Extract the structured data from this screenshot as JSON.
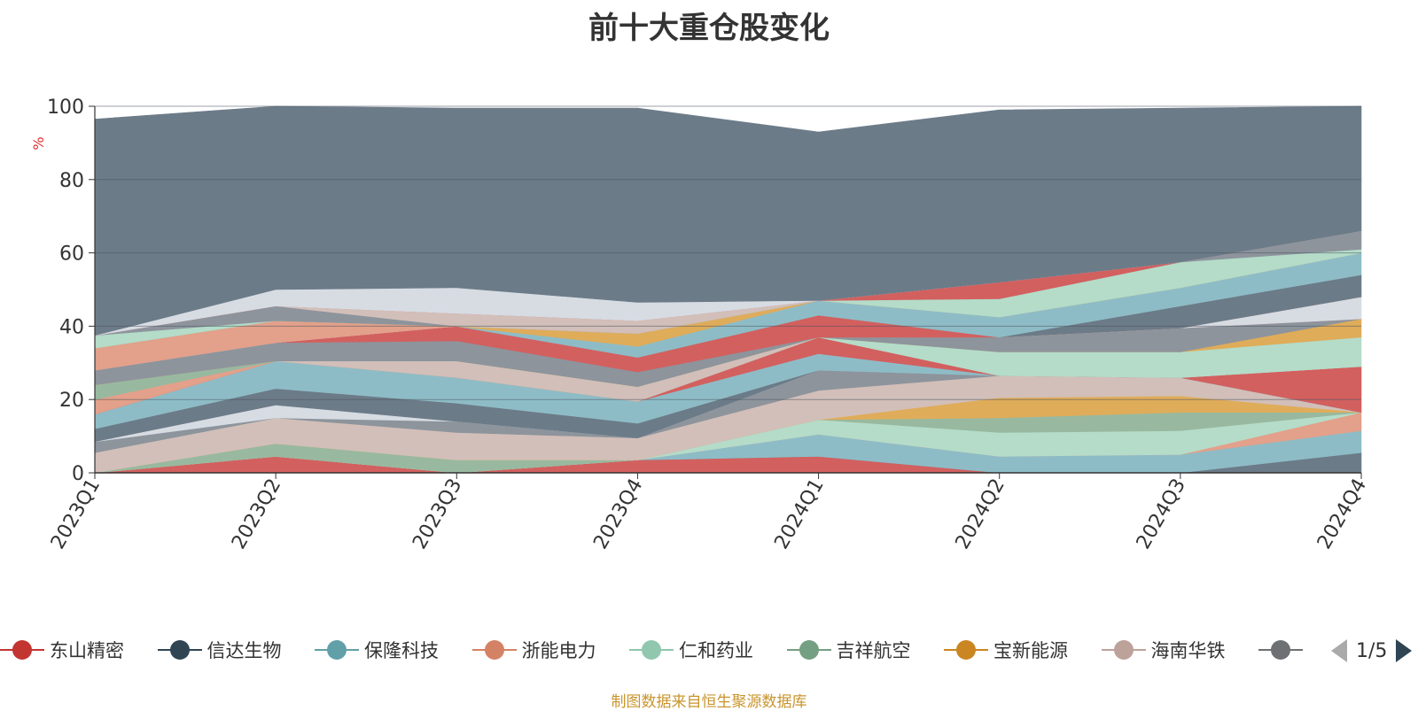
{
  "chart_data": {
    "type": "area",
    "stacked": true,
    "title": "前十大重仓股变化",
    "ylabel": "%",
    "ylim": [
      0,
      100
    ],
    "yticks": [
      0,
      20,
      40,
      60,
      80,
      100
    ],
    "categories": [
      "2023Q1",
      "2023Q2",
      "2023Q3",
      "2023Q4",
      "2024Q1",
      "2024Q2",
      "2024Q3",
      "2024Q4"
    ],
    "series": [
      {
        "name": "东山精密",
        "color": "#d2605f",
        "values": [
          0,
          4.5,
          0,
          3.5,
          4.5,
          0,
          0,
          0
        ]
      },
      {
        "name": "信达生物",
        "color": "#6c7b88",
        "values": [
          0,
          0,
          0,
          0,
          0,
          0,
          0,
          5.5
        ]
      },
      {
        "name": "保隆科技",
        "color": "#8ebcc6",
        "values": [
          0,
          0,
          0,
          0,
          6,
          4.5,
          5,
          6
        ]
      },
      {
        "name": "浙能电力",
        "color": "#e3a08a",
        "values": [
          0,
          0,
          0,
          0,
          0,
          0,
          0,
          5
        ]
      },
      {
        "name": "仁和药业",
        "color": "#b4dcc9",
        "values": [
          0,
          0,
          0,
          0,
          4,
          6.5,
          6.5,
          0
        ]
      },
      {
        "name": "吉祥航空",
        "color": "#98b99f",
        "values": [
          0,
          3.5,
          3.5,
          0,
          0,
          4,
          5,
          0
        ]
      },
      {
        "name": "宝新能源",
        "color": "#dfac5a",
        "values": [
          0,
          0,
          0,
          0,
          0,
          5.5,
          4.5,
          0
        ]
      },
      {
        "name": "海南华铁",
        "color": "#d2bfb9",
        "values": [
          5.5,
          7,
          7.5,
          6,
          8,
          6,
          5,
          0
        ]
      },
      {
        "name": "",
        "color": "#8d949c",
        "values": [
          3,
          0,
          3,
          0,
          5.5,
          0,
          0,
          0
        ]
      },
      {
        "name": "",
        "color": "#d7dce3",
        "values": [
          0,
          3.5,
          0,
          0,
          0,
          0,
          0,
          0
        ]
      },
      {
        "name": "",
        "color": "#6c7b88",
        "values": [
          3.5,
          4.5,
          5,
          4,
          0,
          0,
          0,
          0
        ]
      },
      {
        "name": "",
        "color": "#8ebcc6",
        "values": [
          4,
          7.5,
          7,
          6,
          4.5,
          0,
          0,
          0
        ]
      },
      {
        "name": "",
        "color": "#d2605f",
        "values": [
          0,
          0,
          0,
          0,
          4.5,
          0,
          0,
          12.5
        ]
      },
      {
        "name": "",
        "color": "#e3a08a",
        "values": [
          4,
          0,
          0,
          0,
          0,
          0,
          0,
          0
        ]
      },
      {
        "name": "",
        "color": "#98b99f",
        "values": [
          4,
          0,
          0,
          0,
          0,
          0,
          0,
          0
        ]
      },
      {
        "name": "",
        "color": "#d2bfb9",
        "values": [
          0,
          0,
          4.5,
          4,
          0,
          0,
          0,
          0
        ]
      },
      {
        "name": "",
        "color": "#b4dcc9",
        "values": [
          0,
          0,
          0,
          0,
          0,
          6.5,
          7,
          8
        ]
      },
      {
        "name": "",
        "color": "#dfac5a",
        "values": [
          0,
          0,
          0,
          0,
          0,
          0,
          0,
          5
        ]
      },
      {
        "name": "",
        "color": "#8d949c",
        "values": [
          4,
          5,
          5.5,
          4,
          0,
          4,
          6.5,
          0
        ]
      },
      {
        "name": "",
        "color": "#d2605f",
        "values": [
          0,
          0,
          4,
          4,
          6,
          0,
          0,
          0
        ]
      },
      {
        "name": "",
        "color": "#d7dce3",
        "values": [
          0,
          0,
          0,
          0,
          0,
          0,
          0,
          6
        ]
      },
      {
        "name": "",
        "color": "#e3a08a",
        "values": [
          6,
          6,
          0,
          0,
          0,
          0,
          0,
          0
        ]
      },
      {
        "name": "",
        "color": "#6c7b88",
        "values": [
          0,
          0,
          0,
          0,
          0,
          0,
          6,
          6
        ]
      },
      {
        "name": "",
        "color": "#8ebcc6",
        "values": [
          0,
          0,
          0,
          3,
          4,
          5.5,
          5,
          6
        ]
      },
      {
        "name": "",
        "color": "#dfac5a",
        "values": [
          0,
          0,
          0,
          3.5,
          0,
          0,
          0,
          0
        ]
      },
      {
        "name": "",
        "color": "#b4dcc9",
        "values": [
          3.5,
          0,
          0,
          0,
          0,
          5,
          7,
          1
        ]
      },
      {
        "name": "",
        "color": "#8d949c",
        "values": [
          0,
          4,
          0,
          0,
          0,
          0,
          0,
          5
        ]
      },
      {
        "name": "",
        "color": "#d2bfb9",
        "values": [
          0,
          0,
          3.5,
          3.5,
          0,
          0,
          0,
          0
        ]
      },
      {
        "name": "",
        "color": "#d2605f",
        "values": [
          0,
          0,
          0,
          0,
          0,
          4.5,
          0,
          0
        ]
      },
      {
        "name": "",
        "color": "#d7dce3",
        "values": [
          0,
          4.5,
          7,
          5,
          0,
          0,
          0,
          0
        ]
      },
      {
        "name": "",
        "color": "#6c7b88",
        "values": [
          59,
          50,
          49,
          53,
          46,
          47,
          42,
          34
        ]
      }
    ]
  },
  "legend": {
    "items": [
      {
        "label": "东山精密",
        "color": "#c23531"
      },
      {
        "label": "信达生物",
        "color": "#2f4554"
      },
      {
        "label": "保隆科技",
        "color": "#61a0a8"
      },
      {
        "label": "浙能电力",
        "color": "#d48265"
      },
      {
        "label": "仁和药业",
        "color": "#91c7ae"
      },
      {
        "label": "吉祥航空",
        "color": "#749f83"
      },
      {
        "label": "宝新能源",
        "color": "#ca8622"
      },
      {
        "label": "海南华铁",
        "color": "#bda29a"
      },
      {
        "label": "",
        "color": "#6e7074"
      }
    ],
    "page_text": "1/5"
  },
  "source_note": "制图数据来自恒生聚源数据库"
}
